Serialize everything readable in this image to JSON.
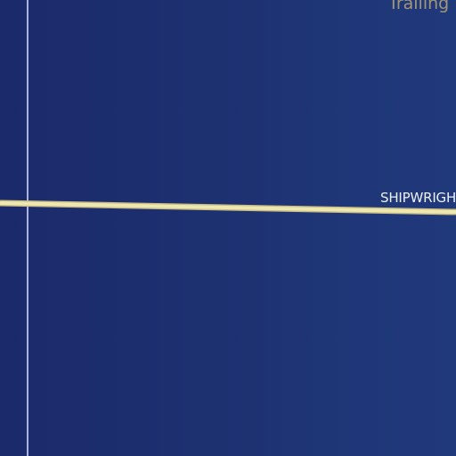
{
  "map": {
    "labels": {
      "top_right": "Trailing",
      "road": "SHIPWRIGHT"
    },
    "colors": {
      "water": "#1d3070",
      "road_fill": "#efe7b0",
      "road_casing": "#c7bd85",
      "boundary_line": "#aab2e0"
    }
  }
}
